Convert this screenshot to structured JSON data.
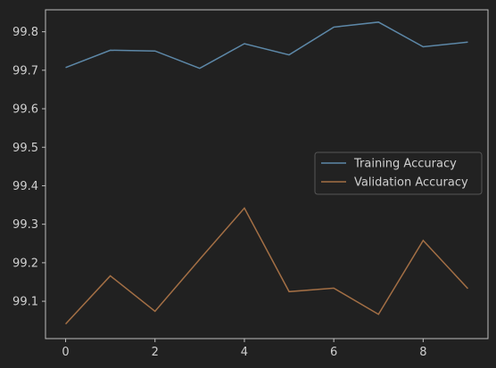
{
  "chart_data": {
    "type": "line",
    "title": "",
    "xlabel": "",
    "ylabel": "",
    "x": [
      0,
      1,
      2,
      3,
      4,
      5,
      6,
      7,
      8,
      9
    ],
    "xlim": [
      -0.45,
      9.45
    ],
    "ylim": [
      99.003,
      99.857
    ],
    "xticks": [
      0,
      2,
      4,
      6,
      8
    ],
    "yticks": [
      99.1,
      99.2,
      99.3,
      99.4,
      99.5,
      99.6,
      99.7,
      99.8
    ],
    "grid": false,
    "legend_position": "center-right",
    "background": "#212121",
    "axis_color": "#bdbdbd",
    "series": [
      {
        "name": "Training Accuracy",
        "color": "#5d88a8",
        "values": [
          99.707,
          99.752,
          99.75,
          99.705,
          99.769,
          99.74,
          99.812,
          99.825,
          99.761,
          99.773
        ]
      },
      {
        "name": "Validation Accuracy",
        "color": "#a36f45",
        "values": [
          99.041,
          99.166,
          99.074,
          99.209,
          99.342,
          99.125,
          99.134,
          99.066,
          99.258,
          99.133
        ]
      }
    ]
  }
}
